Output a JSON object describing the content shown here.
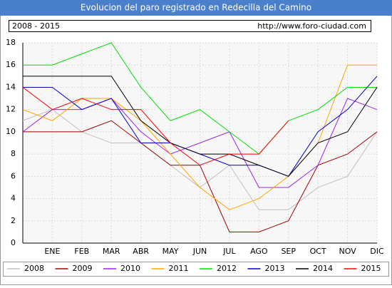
{
  "chart_data": {
    "type": "line",
    "title": "Evolucion del paro registrado en Redecilla del Camino",
    "subtitle": "2008 - 2015",
    "source": "http://www.foro-ciudad.com",
    "categories": [
      null,
      "ENE",
      "FEB",
      "MAR",
      "ABR",
      "MAY",
      "JUN",
      "JUL",
      "AGO",
      "SEP",
      "OCT",
      "NOV",
      "DIC"
    ],
    "ylim": [
      0,
      18
    ],
    "yticks": [
      0,
      2,
      4,
      6,
      8,
      10,
      12,
      14,
      16,
      18
    ],
    "grid": true,
    "legend": "bottom",
    "series": [
      {
        "name": "2008",
        "color": "#c0c0c0",
        "values": [
          11,
          12,
          10,
          9,
          9,
          7,
          5,
          7,
          3,
          3,
          5,
          6,
          10
        ]
      },
      {
        "name": "2009",
        "color": "#a00000",
        "values": [
          10,
          10,
          10,
          11,
          9,
          7,
          7,
          1,
          1,
          2,
          7,
          8,
          10
        ]
      },
      {
        "name": "2010",
        "color": "#a020f0",
        "values": [
          10,
          12,
          12,
          13,
          10,
          8,
          9,
          10,
          5,
          5,
          7,
          13,
          12
        ]
      },
      {
        "name": "2011",
        "color": "#ffa500",
        "values": [
          12,
          11,
          13,
          13,
          11,
          8,
          5,
          3,
          4,
          6,
          9,
          16,
          16
        ]
      },
      {
        "name": "2012",
        "color": "#00e000",
        "values": [
          16,
          16,
          17,
          18,
          14,
          11,
          12,
          10,
          8,
          11,
          12,
          14,
          14
        ]
      },
      {
        "name": "2013",
        "color": "#0000cc",
        "values": [
          14,
          14,
          12,
          13,
          9,
          9,
          8,
          7,
          7,
          6,
          10,
          12,
          15
        ]
      },
      {
        "name": "2014",
        "color": "#000000",
        "values": [
          15,
          15,
          15,
          15,
          11,
          9,
          8,
          8,
          7,
          6,
          9,
          10,
          14
        ]
      },
      {
        "name": "2015",
        "color": "#ff0000",
        "values": [
          14,
          12,
          13,
          12,
          12,
          9,
          7,
          8,
          8,
          11,
          null,
          null,
          null
        ]
      }
    ]
  }
}
